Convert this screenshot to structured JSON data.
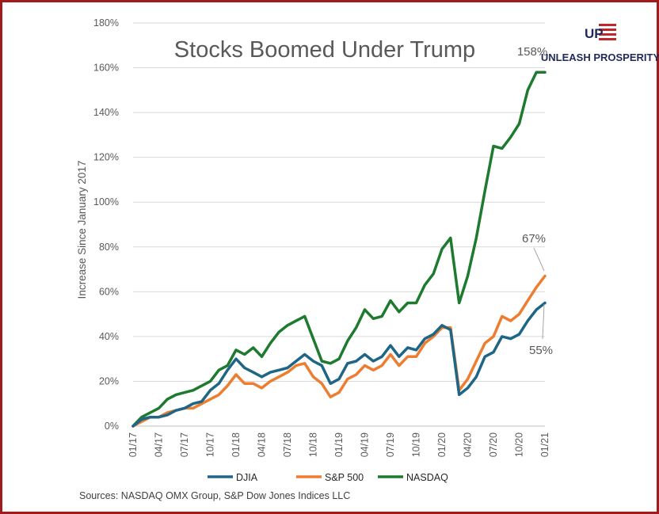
{
  "branding": {
    "logo_mark": "UP",
    "logo_text": "UNLEASH PROSPERITY",
    "navy": "#1f2a5a",
    "red": "#c0272d",
    "frame_color": "#a01c1c"
  },
  "source_note": "Sources: NASDAQ OMX Group, S&P Dow Jones Indices LLC",
  "chart_data": {
    "type": "line",
    "title": "Stocks Boomed Under Trump",
    "xlabel": "",
    "ylabel": "Increase Since January 2017",
    "ylim": [
      0,
      180
    ],
    "y_ticks": [
      "0%",
      "20%",
      "40%",
      "60%",
      "80%",
      "100%",
      "120%",
      "140%",
      "160%",
      "180%"
    ],
    "x_ticks": [
      "01/17",
      "04/17",
      "07/17",
      "10/17",
      "01/18",
      "04/18",
      "07/18",
      "10/18",
      "01/19",
      "04/19",
      "07/19",
      "10/19",
      "01/20",
      "04/20",
      "07/20",
      "10/20",
      "01/21"
    ],
    "grid": "horizontal",
    "legend_position": "bottom",
    "x": [
      "01/17",
      "02/17",
      "03/17",
      "04/17",
      "05/17",
      "06/17",
      "07/17",
      "08/17",
      "09/17",
      "10/17",
      "11/17",
      "12/17",
      "01/18",
      "02/18",
      "03/18",
      "04/18",
      "05/18",
      "06/18",
      "07/18",
      "08/18",
      "09/18",
      "10/18",
      "11/18",
      "12/18",
      "01/19",
      "02/19",
      "03/19",
      "04/19",
      "05/19",
      "06/19",
      "07/19",
      "08/19",
      "09/19",
      "10/19",
      "11/19",
      "12/19",
      "01/20",
      "02/20",
      "03/20",
      "04/20",
      "05/20",
      "06/20",
      "07/20",
      "08/20",
      "09/20",
      "10/20",
      "11/20",
      "12/20",
      "01/21"
    ],
    "series": [
      {
        "name": "DJIA",
        "color": "#1f6686",
        "values": [
          0,
          3,
          4,
          4,
          5,
          7,
          8,
          10,
          11,
          16,
          19,
          25,
          30,
          26,
          24,
          22,
          24,
          25,
          26,
          29,
          32,
          29,
          27,
          19,
          21,
          28,
          29,
          32,
          29,
          31,
          36,
          31,
          35,
          34,
          39,
          41,
          45,
          43,
          14,
          17,
          22,
          31,
          33,
          40,
          39,
          41,
          47,
          52,
          55
        ]
      },
      {
        "name": "S&P 500",
        "color": "#ed7d31",
        "values": [
          0,
          2,
          4,
          4,
          6,
          7,
          8,
          8,
          10,
          12,
          14,
          18,
          23,
          19,
          19,
          17,
          20,
          22,
          24,
          27,
          28,
          22,
          19,
          13,
          15,
          21,
          23,
          27,
          25,
          27,
          32,
          27,
          31,
          31,
          37,
          40,
          44,
          44,
          16,
          21,
          29,
          37,
          40,
          49,
          47,
          50,
          56,
          62,
          67
        ]
      },
      {
        "name": "NASDAQ",
        "color": "#1d7a2e",
        "values": [
          0,
          4,
          6,
          8,
          12,
          14,
          15,
          16,
          18,
          20,
          25,
          27,
          34,
          32,
          35,
          31,
          37,
          42,
          45,
          47,
          49,
          39,
          29,
          28,
          30,
          38,
          44,
          52,
          48,
          49,
          56,
          51,
          55,
          55,
          63,
          68,
          79,
          84,
          55,
          67,
          84,
          105,
          125,
          124,
          129,
          135,
          150,
          158,
          158
        ]
      }
    ],
    "annotations": [
      "158%",
      "67%",
      "55%"
    ]
  }
}
